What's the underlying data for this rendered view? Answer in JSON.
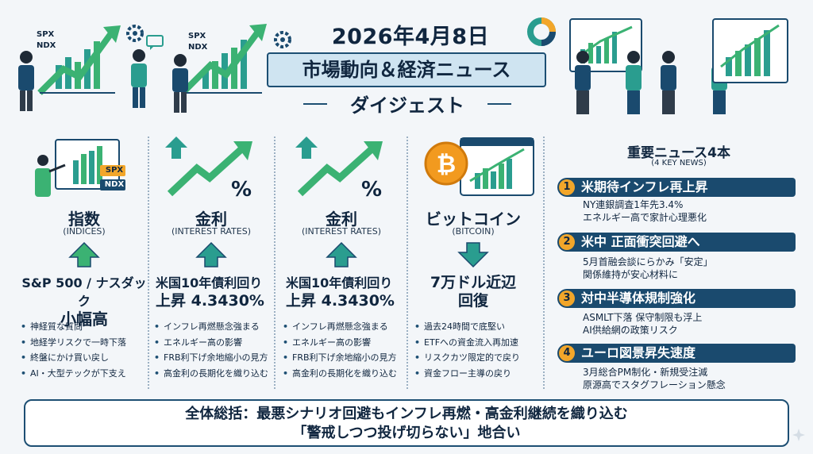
{
  "header": {
    "date": "2026年4月8日",
    "title": "市場動向＆経済ニュース",
    "subtitle": "ダイジェスト"
  },
  "chart_labels": {
    "spx": "SPX",
    "ndx": "NDX",
    "percent": "%"
  },
  "columns": [
    {
      "title": "指数",
      "subtitle": "(INDICES)",
      "direction": "up",
      "headline_1": "S&P 500 / ナスダック",
      "headline_2": "小幅高",
      "bullets": [
        "神経質な質問",
        "地経学リスクで一時下落",
        "終盤にかけ買い戻し",
        "AI・大型テックが下支え"
      ]
    },
    {
      "title": "金利",
      "subtitle": "(INTEREST RATES)",
      "direction": "up",
      "headline_1": "米国10年債利回り",
      "headline_2": "上昇 4.3430%",
      "bullets": [
        "インフレ再燃懸念強まる",
        "エネルギー高の影響",
        "FRB利下げ余地縮小の見方",
        "高金利の長期化を織り込む"
      ]
    },
    {
      "title": "金利",
      "subtitle": "(INTEREST RATES)",
      "direction": "up",
      "headline_1": "米国10年債利回り",
      "headline_2": "上昇 4.3430%",
      "bullets": [
        "インフレ再燃懸念強まる",
        "エネルギー高の影響",
        "FRB利下げ余地縮小の見方",
        "高金利の長期化を織り込む"
      ]
    },
    {
      "title": "ビットコイン",
      "subtitle": "(BITCOIN)",
      "direction": "down",
      "headline_1": "7万ドル近辺",
      "headline_2": "回復",
      "bullets": [
        "過去24時間で底堅い",
        "ETFへの資金流入再加速",
        "リスクカツ限定的で戻り",
        "資金フロー主導の戻り"
      ]
    }
  ],
  "news": {
    "title": "重要ニュース4本",
    "subtitle": "(4 KEY NEWS)",
    "items": [
      {
        "num": "1",
        "headline": "米期待インフレ再上昇",
        "line1": "NY連銀調査1年先3.4%",
        "line2": "エネルギー高で家計心理悪化"
      },
      {
        "num": "2",
        "headline": "米中 正面衝突回避へ",
        "line1": "5月首融会談にらかみ「安定」",
        "line2": "関係維持が安心材料に"
      },
      {
        "num": "3",
        "headline": "対中半導体規制強化",
        "line1": "ASMLT下落 保守制限も浮上",
        "line2": "AI供給網の政策リスク"
      },
      {
        "num": "4",
        "headline": "ユーロ図景昇失速度",
        "line1": "3月総合PM制化・新規受注減",
        "line2": "原源高でスタグフレーション懸念"
      }
    ]
  },
  "summary": {
    "line1": "全体総括：最悪シナリオ回避もインフレ再燃・高金利継続を織り込む",
    "line2": "「警戒しつつ投げ切らない」地合い"
  },
  "colors": {
    "navy": "#1a4a6e",
    "teal": "#2a9d8f",
    "green": "#3bb273",
    "orange": "#f2a62a",
    "bg": "#f3f6f9"
  }
}
